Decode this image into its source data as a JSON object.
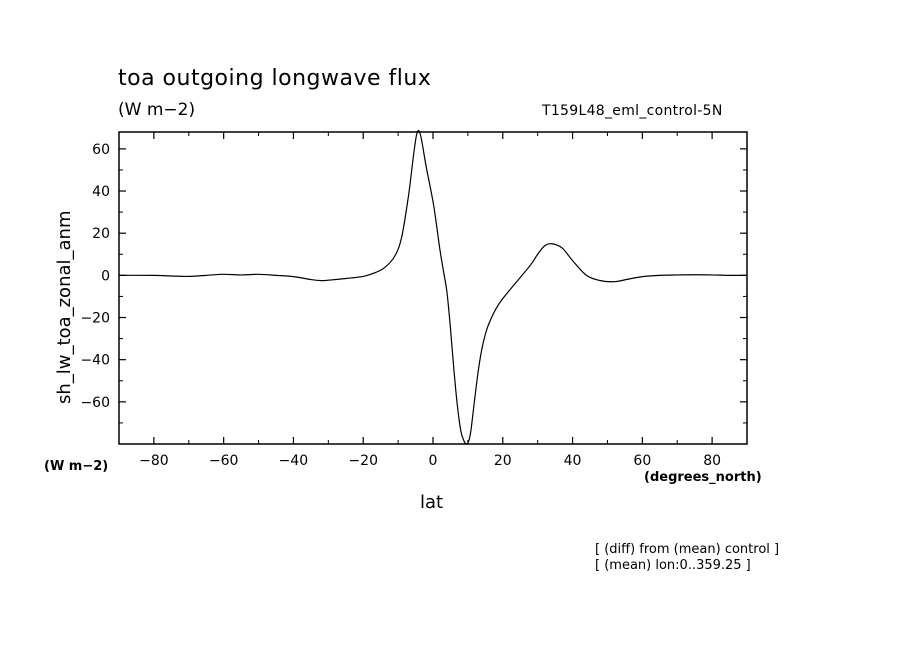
{
  "header": {
    "title": "toa outgoing longwave flux",
    "units": "(W m−2)",
    "run_label": "T159L48_eml_control-5N"
  },
  "notes": [
    "[ (diff) from (mean) control ]",
    "[ (mean) lon:0..359.25 ]"
  ],
  "chart_data": {
    "type": "line",
    "title": "toa outgoing longwave flux",
    "xlabel": "lat",
    "ylabel": "sh_lw_toa_zonal_anm",
    "x_units": "(degrees_north)",
    "y_units": "(W m−2)",
    "xlim": [
      -90,
      90
    ],
    "ylim": [
      -80,
      68
    ],
    "xticks": [
      -80,
      -60,
      -40,
      -20,
      0,
      20,
      40,
      60,
      80
    ],
    "yticks": [
      -60,
      -40,
      -20,
      0,
      20,
      40,
      60
    ],
    "grid": false,
    "series": [
      {
        "x": [
          -90,
          -80,
          -75,
          -70,
          -65,
          -60,
          -55,
          -50,
          -45,
          -40,
          -35,
          -32,
          -30,
          -25,
          -20,
          -17,
          -14,
          -11,
          -9,
          -7,
          -5.5,
          -4.5,
          -3.5,
          -2,
          0,
          1,
          2,
          3,
          4,
          5,
          6,
          7,
          8,
          9,
          9.5,
          10,
          10.5,
          11,
          12,
          13,
          14,
          15,
          16,
          18,
          20,
          24,
          28,
          30,
          32,
          34,
          37,
          40,
          44,
          48,
          52,
          56,
          60,
          65,
          70,
          75,
          80,
          85,
          90
        ],
        "y": [
          0,
          0,
          -0.3,
          -0.5,
          0,
          0.5,
          0.2,
          0.5,
          0,
          -0.6,
          -2,
          -2.5,
          -2.3,
          -1.5,
          -0.5,
          1,
          3.5,
          9,
          18,
          38,
          58,
          68,
          66,
          52,
          35,
          24,
          12,
          2,
          -8,
          -25,
          -45,
          -62,
          -74,
          -79,
          -80,
          -79.5,
          -77,
          -72,
          -58,
          -45,
          -35,
          -28,
          -23,
          -16,
          -11,
          -3,
          5,
          10,
          14,
          15,
          13,
          7,
          0,
          -2.5,
          -3,
          -1.8,
          -0.6,
          0,
          0.2,
          0.3,
          0.2,
          0,
          0
        ]
      }
    ]
  }
}
